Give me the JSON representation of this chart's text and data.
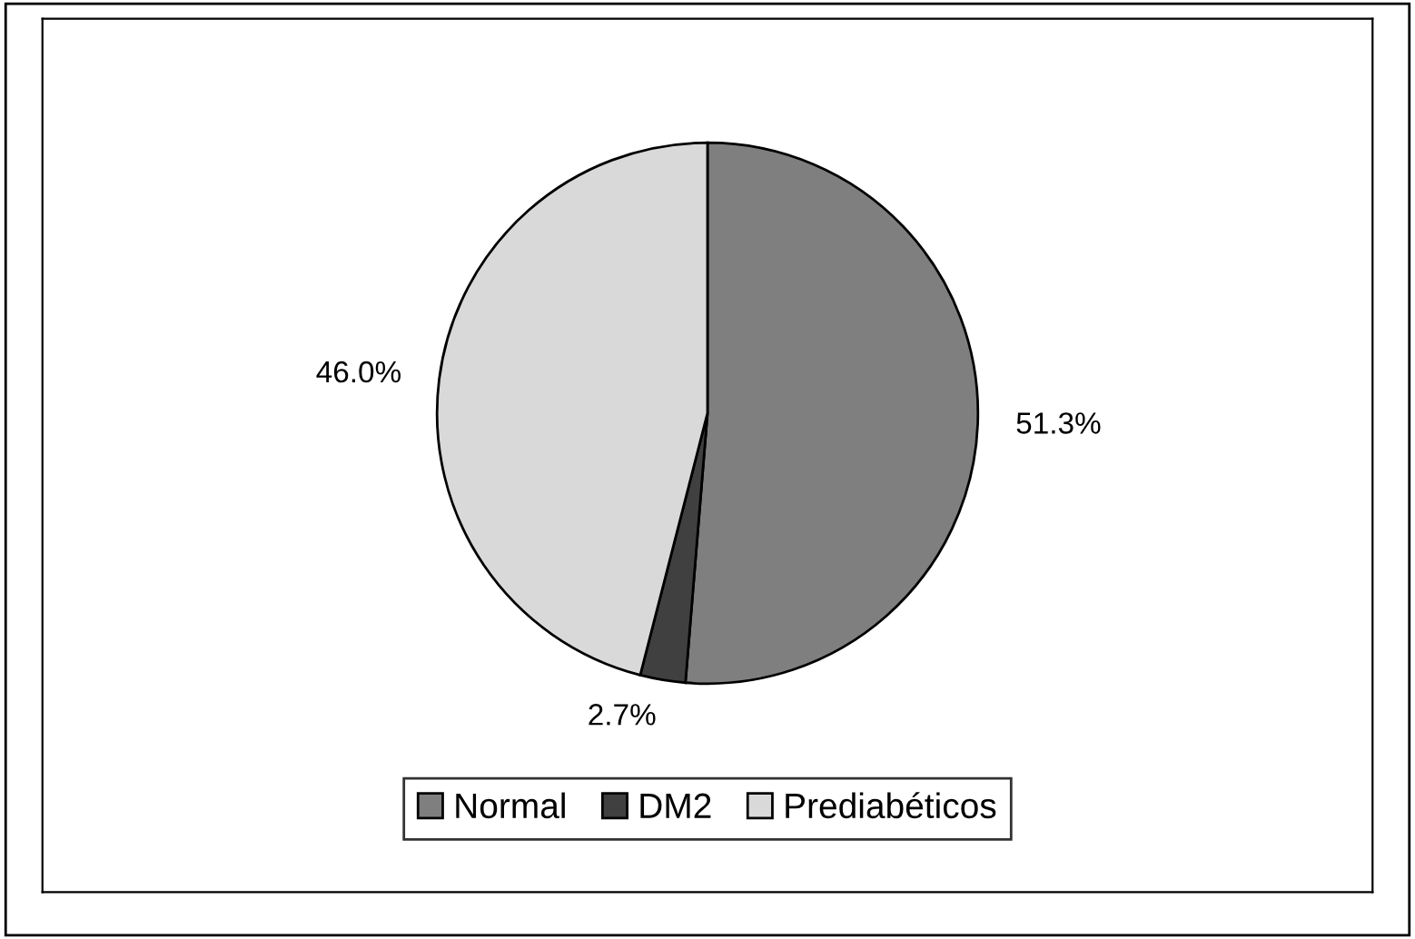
{
  "chart_data": {
    "type": "pie",
    "categories": [
      "Normal",
      "DM2",
      "Prediabéticos"
    ],
    "values": [
      51.3,
      2.7,
      46.0
    ],
    "colors": [
      "#7f7f7f",
      "#404040",
      "#d9d9d9"
    ],
    "value_labels": [
      "51.3%",
      "2.7%",
      "46.0%"
    ],
    "legend": "bottom"
  }
}
